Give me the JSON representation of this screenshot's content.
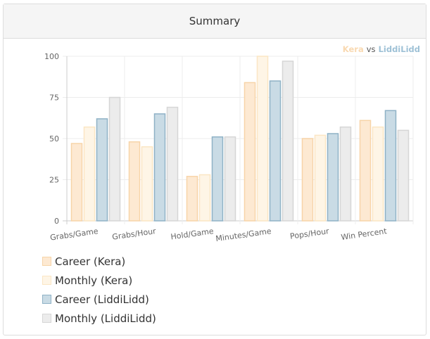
{
  "panel": {
    "title": "Summary"
  },
  "corner_legend": {
    "player1": "Kera",
    "vs": "vs",
    "player2": "LiddiLidd"
  },
  "colors": {
    "career_kera": "#fde9d2",
    "career_kera_border": "#f7d4a8",
    "monthly_kera": "#fef5e6",
    "monthly_kera_border": "#fbe6c4",
    "career_liddi": "#c9dbe5",
    "career_liddi_border": "#8fb2c6",
    "monthly_liddi": "#ececec",
    "monthly_liddi_border": "#d6d6d6",
    "kera_text": "#f9d9b1",
    "liddi_text": "#9ec1d6"
  },
  "chart_data": {
    "type": "bar",
    "categories": [
      "Grabs/Game",
      "Grabs/Hour",
      "Hold/Game",
      "Minutes/Game",
      "Pops/Hour",
      "Win Percent"
    ],
    "series": [
      {
        "name": "Career (Kera)",
        "values": [
          47,
          48,
          27,
          84,
          50,
          61
        ]
      },
      {
        "name": "Monthly (Kera)",
        "values": [
          57,
          45,
          28,
          100,
          52,
          57
        ]
      },
      {
        "name": "Career (LiddiLidd)",
        "values": [
          62,
          65,
          51,
          85,
          53,
          67
        ]
      },
      {
        "name": "Monthly (LiddiLidd)",
        "values": [
          75,
          69,
          51,
          97,
          57,
          55
        ]
      }
    ],
    "yticks": [
      "0",
      "25",
      "50",
      "75",
      "100"
    ],
    "ylim": [
      0,
      100
    ],
    "grid": true,
    "legend_position": "bottom-left"
  }
}
